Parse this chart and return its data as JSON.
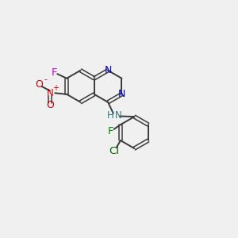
{
  "background_color": "#f0f0f0",
  "bond_color": "#3a3a3a",
  "atom_colors": {
    "N": "#0000cc",
    "F_top": "#cc00cc",
    "F_bottom": "#008800",
    "Cl": "#006600",
    "O": "#cc0000",
    "N_plus": "#cc0000",
    "NH": "#337777",
    "C": "#3a3a3a"
  },
  "figsize": [
    3.0,
    3.0
  ],
  "dpi": 100,
  "xlim": [
    0,
    10
  ],
  "ylim": [
    0,
    10
  ]
}
